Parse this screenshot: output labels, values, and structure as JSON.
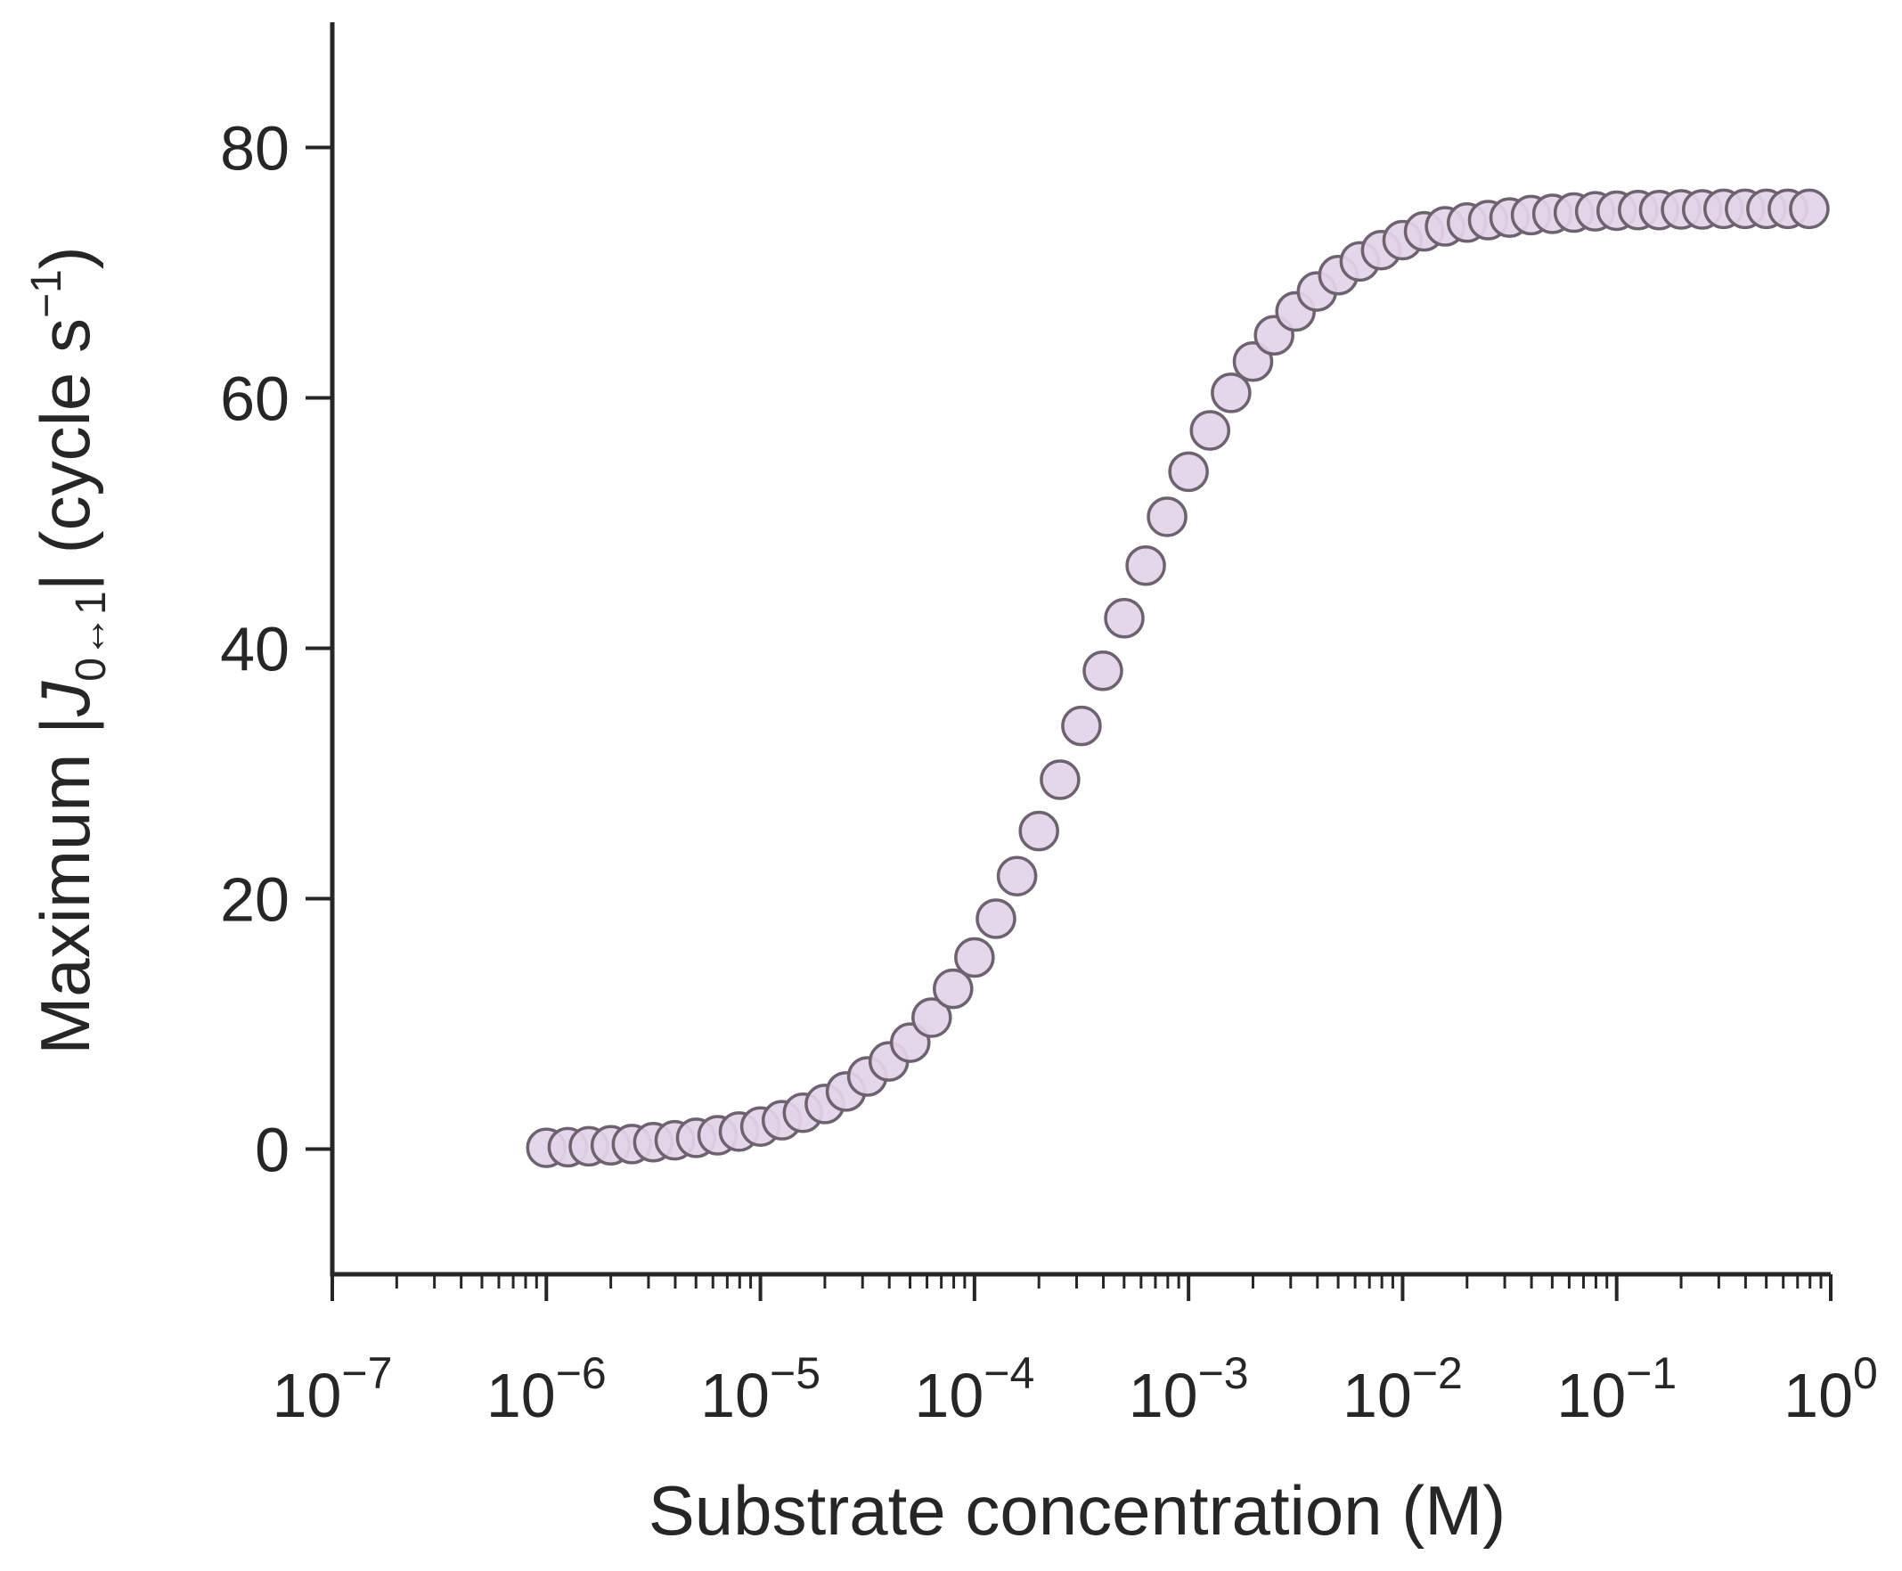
{
  "chart_data": {
    "type": "scatter",
    "title": "",
    "xlabel": "Substrate concentration (M)",
    "ylabel": {
      "prefix": "Maximum ",
      "var": "J",
      "sub": "0↔1",
      "suffix": " (cycle s",
      "sup": "−1",
      "close": ")"
    },
    "xscale": "log",
    "xlim": [
      1e-07,
      1
    ],
    "ylim": [
      -10,
      90
    ],
    "x_ticks": [
      {
        "value": 1e-07,
        "base": "10",
        "exp": "−7"
      },
      {
        "value": 1e-06,
        "base": "10",
        "exp": "−6"
      },
      {
        "value": 1e-05,
        "base": "10",
        "exp": "−5"
      },
      {
        "value": 0.0001,
        "base": "10",
        "exp": "−4"
      },
      {
        "value": 0.001,
        "base": "10",
        "exp": "−3"
      },
      {
        "value": 0.01,
        "base": "10",
        "exp": "−2"
      },
      {
        "value": 0.1,
        "base": "10",
        "exp": "−1"
      },
      {
        "value": 1,
        "base": "10",
        "exp": "0"
      }
    ],
    "y_ticks": [
      {
        "value": 0,
        "label": "0"
      },
      {
        "value": 20,
        "label": "20"
      },
      {
        "value": 40,
        "label": "40"
      },
      {
        "value": 60,
        "label": "60"
      },
      {
        "value": 80,
        "label": "80"
      }
    ],
    "grid": false,
    "marker_fill": "#e3d4e8",
    "marker_edge": "#6e6270",
    "axis_color": "#262626",
    "series": [
      {
        "x": [
          1e-06,
          1.26e-06,
          1.58e-06,
          2e-06,
          2.51e-06,
          3.16e-06,
          3.98e-06,
          5.01e-06,
          6.31e-06,
          7.94e-06,
          1e-05,
          1.26e-05,
          1.58e-05,
          2e-05,
          2.51e-05,
          3.16e-05,
          3.98e-05,
          5.01e-05,
          6.31e-05,
          7.94e-05,
          0.0001,
          0.000126,
          0.000158,
          0.0002,
          0.000251,
          0.000316,
          0.000398,
          0.000501,
          0.000631,
          0.000794,
          0.001,
          0.00126,
          0.00158,
          0.002,
          0.00251,
          0.00316,
          0.00398,
          0.00501,
          0.00631,
          0.00794,
          0.01,
          0.0126,
          0.0158,
          0.02,
          0.0251,
          0.0316,
          0.0398,
          0.0501,
          0.0631,
          0.0794,
          0.1,
          0.126,
          0.158,
          0.2,
          0.251,
          0.316,
          0.398,
          0.501,
          0.631,
          0.794
        ],
        "y": [
          0.1,
          0.15,
          0.22,
          0.3,
          0.4,
          0.55,
          0.7,
          0.9,
          1.1,
          1.4,
          1.8,
          2.3,
          2.9,
          3.6,
          4.6,
          5.8,
          7.0,
          8.5,
          10.5,
          12.8,
          15.3,
          18.4,
          21.8,
          25.4,
          29.5,
          33.8,
          38.2,
          42.4,
          46.6,
          50.5,
          54.1,
          57.4,
          60.4,
          62.9,
          65.0,
          66.9,
          68.5,
          69.8,
          70.9,
          71.8,
          72.6,
          73.3,
          73.7,
          74.0,
          74.2,
          74.4,
          74.6,
          74.7,
          74.8,
          74.9,
          74.95,
          75.0,
          75.0,
          75.05,
          75.05,
          75.1,
          75.1,
          75.1,
          75.1,
          75.1
        ]
      }
    ]
  }
}
